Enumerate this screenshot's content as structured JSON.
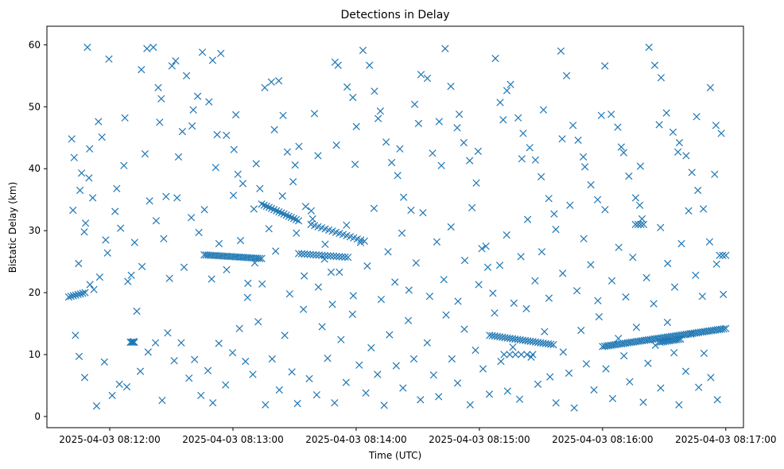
{
  "chart_data": {
    "type": "scatter",
    "title": "Detections in Delay",
    "xlabel": "Time (UTC)",
    "ylabel": "Bistatic Delay (km)",
    "marker": "x",
    "color": "#1f77b4",
    "xlim": [
      -10.6,
      328.6
    ],
    "ylim": [
      -1.8,
      63.0
    ],
    "x_units": "seconds after 2025-04-03 08:11:40",
    "x_ticks": [
      {
        "value": 20,
        "label": "2025-04-03 08:12:00"
      },
      {
        "value": 80,
        "label": "2025-04-03 08:13:00"
      },
      {
        "value": 140,
        "label": "2025-04-03 08:14:00"
      },
      {
        "value": 200,
        "label": "2025-04-03 08:15:00"
      },
      {
        "value": 260,
        "label": "2025-04-03 08:16:00"
      },
      {
        "value": 320,
        "label": "2025-04-03 08:17:00"
      }
    ],
    "y_ticks": [
      {
        "value": 0,
        "label": "0"
      },
      {
        "value": 10,
        "label": "10"
      },
      {
        "value": 20,
        "label": "20"
      },
      {
        "value": 30,
        "label": "30"
      },
      {
        "value": 40,
        "label": "40"
      },
      {
        "value": 50,
        "label": "50"
      },
      {
        "value": 60,
        "label": "60"
      }
    ],
    "tracks": [
      {
        "x_start": 0,
        "x_end": 8,
        "y_start": 19.3,
        "y_end": 20.0,
        "count": 8
      },
      {
        "x_start": 30,
        "x_end": 32,
        "y_start": 12.0,
        "y_end": 12.0,
        "count": 4
      },
      {
        "x_start": 66,
        "x_end": 94,
        "y_start": 26.1,
        "y_end": 25.5,
        "count": 30
      },
      {
        "x_start": 94,
        "x_end": 112,
        "y_start": 34.3,
        "y_end": 31.6,
        "count": 16
      },
      {
        "x_start": 118,
        "x_end": 144,
        "y_start": 31.0,
        "y_end": 28.3,
        "count": 16
      },
      {
        "x_start": 112,
        "x_end": 136,
        "y_start": 26.3,
        "y_end": 25.7,
        "count": 18
      },
      {
        "x_start": 205,
        "x_end": 236,
        "y_start": 13.1,
        "y_end": 11.6,
        "count": 26
      },
      {
        "x_start": 212,
        "x_end": 226,
        "y_start": 10.0,
        "y_end": 10.0,
        "count": 6
      },
      {
        "x_start": 260,
        "x_end": 320,
        "y_start": 11.3,
        "y_end": 14.2,
        "count": 60
      },
      {
        "x_start": 288,
        "x_end": 298,
        "y_start": 12.0,
        "y_end": 12.5,
        "count": 12
      },
      {
        "x_start": 276,
        "x_end": 280,
        "y_start": 31.0,
        "y_end": 31.0,
        "count": 4
      },
      {
        "x_start": 317,
        "x_end": 320,
        "y_start": 26.0,
        "y_end": 26.0,
        "count": 3
      }
    ],
    "points": [
      [
        1.5,
        44.8
      ],
      [
        4.8,
        24.7
      ],
      [
        6.3,
        39.3
      ],
      [
        7.6,
        29.8
      ],
      [
        9.1,
        59.6
      ],
      [
        10.2,
        43.2
      ],
      [
        12.3,
        20.5
      ],
      [
        14.5,
        47.6
      ],
      [
        18,
        28.5
      ],
      [
        19.6,
        57.7
      ],
      [
        23.4,
        36.8
      ],
      [
        26.9,
        40.5
      ],
      [
        30.5,
        22.8
      ],
      [
        33.2,
        17
      ],
      [
        35.4,
        56
      ],
      [
        38.1,
        59.4
      ],
      [
        41.2,
        59.6
      ],
      [
        43.6,
        53.1
      ],
      [
        45.1,
        51.3
      ],
      [
        47.4,
        35.5
      ],
      [
        50.3,
        56.6
      ],
      [
        52.1,
        57.4
      ],
      [
        55.4,
        46
      ],
      [
        57.4,
        55
      ],
      [
        60.1,
        46.9
      ],
      [
        62.8,
        51.7
      ],
      [
        65.1,
        58.8
      ],
      [
        68.3,
        50.8
      ],
      [
        70.1,
        57.5
      ],
      [
        72.3,
        45.5
      ],
      [
        74.1,
        58.6
      ],
      [
        76.8,
        45.4
      ],
      [
        80.5,
        43.1
      ],
      [
        82.4,
        39.1
      ],
      [
        84.8,
        37.6
      ],
      [
        87.3,
        21.5
      ],
      [
        90.2,
        33.5
      ],
      [
        93.1,
        36.8
      ],
      [
        95.5,
        53.1
      ],
      [
        98.7,
        54
      ],
      [
        102.3,
        54.2
      ],
      [
        104.4,
        48.6
      ],
      [
        106.5,
        42.7
      ],
      [
        109.3,
        37.9
      ],
      [
        112.1,
        43.6
      ],
      [
        115.4,
        33.9
      ],
      [
        118.8,
        31.9
      ],
      [
        121.4,
        42.1
      ],
      [
        124.6,
        25.4
      ],
      [
        127.8,
        23.3
      ],
      [
        129.7,
        57.2
      ],
      [
        131.2,
        56.7
      ],
      [
        135.6,
        53.2
      ],
      [
        138.4,
        51.5
      ],
      [
        140.1,
        46.8
      ],
      [
        143.3,
        59.1
      ],
      [
        146.5,
        56.7
      ],
      [
        148.9,
        52.5
      ],
      [
        151.8,
        49.3
      ],
      [
        154.6,
        44.3
      ],
      [
        157.3,
        41
      ],
      [
        160.2,
        38.9
      ],
      [
        163.1,
        35.4
      ],
      [
        166.7,
        33.3
      ],
      [
        168.5,
        50.4
      ],
      [
        171.6,
        55.2
      ],
      [
        174.7,
        54.6
      ],
      [
        177.2,
        42.5
      ],
      [
        180.4,
        47.6
      ],
      [
        183.3,
        59.4
      ],
      [
        186.1,
        53.3
      ],
      [
        189.2,
        46.6
      ],
      [
        192.4,
        44.2
      ],
      [
        195.3,
        41.3
      ],
      [
        198.5,
        37.7
      ],
      [
        201.2,
        27.1
      ],
      [
        204.1,
        24.1
      ],
      [
        207.8,
        57.8
      ],
      [
        210.1,
        50.7
      ],
      [
        213.4,
        52.6
      ],
      [
        215.2,
        53.6
      ],
      [
        218.9,
        48.2
      ],
      [
        221.3,
        45.7
      ],
      [
        224.5,
        43.4
      ],
      [
        227.3,
        41.4
      ],
      [
        230.1,
        38.7
      ],
      [
        233.8,
        35.2
      ],
      [
        236.4,
        32.7
      ],
      [
        239.7,
        59
      ],
      [
        242.5,
        55
      ],
      [
        245.6,
        47
      ],
      [
        248.1,
        44.6
      ],
      [
        251.4,
        40.3
      ],
      [
        254.3,
        37.4
      ],
      [
        257.6,
        35
      ],
      [
        261.1,
        56.6
      ],
      [
        264.2,
        48.8
      ],
      [
        267.4,
        46.7
      ],
      [
        270.3,
        42.6
      ],
      [
        272.8,
        38.8
      ],
      [
        276.1,
        35.3
      ],
      [
        279.2,
        31.9
      ],
      [
        282.6,
        59.6
      ],
      [
        285.4,
        56.7
      ],
      [
        288.5,
        54.7
      ],
      [
        291.1,
        49
      ],
      [
        294.3,
        45.9
      ],
      [
        297.4,
        44.2
      ],
      [
        300.7,
        42.1
      ],
      [
        303.5,
        39.4
      ],
      [
        306.4,
        36.5
      ],
      [
        309.1,
        33.5
      ],
      [
        312.5,
        53.1
      ],
      [
        315.2,
        47
      ],
      [
        317.8,
        45.7
      ],
      [
        3.3,
        13.1
      ],
      [
        5.1,
        9.7
      ],
      [
        7.8,
        6.3
      ],
      [
        10.4,
        21.3
      ],
      [
        13.6,
        1.7
      ],
      [
        17.4,
        8.8
      ],
      [
        21.2,
        3.4
      ],
      [
        24.7,
        5.2
      ],
      [
        28.3,
        4.8
      ],
      [
        31.6,
        12.1
      ],
      [
        34.9,
        7.3
      ],
      [
        38.7,
        10.4
      ],
      [
        42.3,
        11.9
      ],
      [
        45.5,
        2.6
      ],
      [
        48.2,
        13.5
      ],
      [
        51.4,
        9
      ],
      [
        54.8,
        11.9
      ],
      [
        58.6,
        6.2
      ],
      [
        61.3,
        9.2
      ],
      [
        64.4,
        3.4
      ],
      [
        67.8,
        7.4
      ],
      [
        70.2,
        2.2
      ],
      [
        73.1,
        11.8
      ],
      [
        76.4,
        5.1
      ],
      [
        79.8,
        10.3
      ],
      [
        83.2,
        14.2
      ],
      [
        86.1,
        8.9
      ],
      [
        89.7,
        6.8
      ],
      [
        92.3,
        15.3
      ],
      [
        95.8,
        1.9
      ],
      [
        99.1,
        9.3
      ],
      [
        102.6,
        4.3
      ],
      [
        105.2,
        13.1
      ],
      [
        108.7,
        7.2
      ],
      [
        111.4,
        2.1
      ],
      [
        114.3,
        17.3
      ],
      [
        117.2,
        6.1
      ],
      [
        120.8,
        3.5
      ],
      [
        123.4,
        14.5
      ],
      [
        126.1,
        9.4
      ],
      [
        129.5,
        2.2
      ],
      [
        132.6,
        12.4
      ],
      [
        135.1,
        5.5
      ],
      [
        138.2,
        16.5
      ],
      [
        141.5,
        8.3
      ],
      [
        144.7,
        3.8
      ],
      [
        147.3,
        11.1
      ],
      [
        150.4,
        6.8
      ],
      [
        153.6,
        1.8
      ],
      [
        156.2,
        13.2
      ],
      [
        159.5,
        8.2
      ],
      [
        162.8,
        4.6
      ],
      [
        165.4,
        15.5
      ],
      [
        168.1,
        9.3
      ],
      [
        171.3,
        2.7
      ],
      [
        174.6,
        11.9
      ],
      [
        177.7,
        6.7
      ],
      [
        180.2,
        3.2
      ],
      [
        183.8,
        16.4
      ],
      [
        186.6,
        9.3
      ],
      [
        189.4,
        5.4
      ],
      [
        192.7,
        14.1
      ],
      [
        195.5,
        1.9
      ],
      [
        198.1,
        10.7
      ],
      [
        201.8,
        7.7
      ],
      [
        204.9,
        3.6
      ],
      [
        207.4,
        16.7
      ],
      [
        210.5,
        8.9
      ],
      [
        213.7,
        4.1
      ],
      [
        216.3,
        11.2
      ],
      [
        219.6,
        2.8
      ],
      [
        222.9,
        17.4
      ],
      [
        225.2,
        9.6
      ],
      [
        228.5,
        5.2
      ],
      [
        231.7,
        13.7
      ],
      [
        234.4,
        6.4
      ],
      [
        237.3,
        2.2
      ],
      [
        240.8,
        10.4
      ],
      [
        243.6,
        7
      ],
      [
        246.2,
        1.4
      ],
      [
        249.5,
        13.9
      ],
      [
        252.1,
        8.5
      ],
      [
        255.8,
        4.3
      ],
      [
        258.3,
        16.1
      ],
      [
        261.6,
        7.7
      ],
      [
        264.9,
        2.9
      ],
      [
        267.7,
        12.6
      ],
      [
        270.4,
        9.8
      ],
      [
        273.2,
        5.6
      ],
      [
        276.5,
        14.4
      ],
      [
        279.8,
        2.3
      ],
      [
        282.1,
        8.6
      ],
      [
        285.7,
        11.5
      ],
      [
        288.3,
        4.6
      ],
      [
        291.6,
        15.2
      ],
      [
        294.8,
        10.3
      ],
      [
        297.2,
        1.9
      ],
      [
        300.5,
        7.3
      ],
      [
        303.1,
        13.3
      ],
      [
        306.8,
        4.7
      ],
      [
        309.4,
        10.2
      ],
      [
        312.7,
        6.3
      ],
      [
        315.9,
        2.7
      ],
      [
        2.1,
        33.3
      ],
      [
        5.5,
        36.5
      ],
      [
        8.2,
        31.2
      ],
      [
        11.7,
        35.3
      ],
      [
        15.1,
        22.5
      ],
      [
        18.9,
        26.4
      ],
      [
        22.6,
        33.1
      ],
      [
        25.3,
        30.4
      ],
      [
        28.8,
        21.8
      ],
      [
        32.1,
        28.1
      ],
      [
        35.7,
        24.2
      ],
      [
        39.4,
        34.8
      ],
      [
        42.6,
        31.6
      ],
      [
        46.3,
        28.7
      ],
      [
        49.1,
        22.3
      ],
      [
        52.8,
        35.3
      ],
      [
        56.2,
        24.1
      ],
      [
        59.7,
        32.1
      ],
      [
        63.4,
        29.7
      ],
      [
        66.1,
        33.4
      ],
      [
        69.6,
        22.2
      ],
      [
        73.2,
        27.9
      ],
      [
        76.9,
        23.7
      ],
      [
        80.2,
        35.7
      ],
      [
        83.7,
        28.4
      ],
      [
        87.1,
        19.2
      ],
      [
        90.6,
        24.8
      ],
      [
        94.2,
        21.4
      ],
      [
        97.5,
        30.3
      ],
      [
        100.8,
        26.7
      ],
      [
        104.1,
        35.6
      ],
      [
        107.6,
        19.8
      ],
      [
        110.9,
        29.6
      ],
      [
        114.7,
        22.7
      ],
      [
        118.1,
        33.2
      ],
      [
        121.6,
        20.9
      ],
      [
        124.9,
        27.8
      ],
      [
        128.4,
        18.1
      ],
      [
        131.8,
        23.3
      ],
      [
        135.3,
        30.9
      ],
      [
        138.6,
        19.5
      ],
      [
        142.1,
        28.1
      ],
      [
        145.4,
        24.3
      ],
      [
        148.7,
        33.6
      ],
      [
        152.2,
        18.9
      ],
      [
        155.5,
        26.6
      ],
      [
        158.9,
        21.7
      ],
      [
        162.3,
        29.6
      ],
      [
        165.7,
        20.4
      ],
      [
        169.2,
        24.8
      ],
      [
        172.5,
        32.9
      ],
      [
        175.8,
        19.4
      ],
      [
        179.3,
        28.2
      ],
      [
        182.7,
        22.1
      ],
      [
        186.2,
        30.6
      ],
      [
        189.6,
        18.6
      ],
      [
        192.9,
        25.2
      ],
      [
        196.4,
        33.7
      ],
      [
        199.7,
        21.3
      ],
      [
        203.2,
        27.5
      ],
      [
        206.6,
        19.9
      ],
      [
        209.9,
        24.4
      ],
      [
        213.3,
        29.3
      ],
      [
        216.8,
        18.3
      ],
      [
        220.2,
        25.8
      ],
      [
        223.5,
        31.8
      ],
      [
        227.1,
        21.9
      ],
      [
        230.4,
        26.6
      ],
      [
        233.9,
        19.1
      ],
      [
        237.2,
        30.2
      ],
      [
        240.6,
        23.1
      ],
      [
        244.1,
        34.1
      ],
      [
        247.5,
        20.3
      ],
      [
        250.8,
        28.7
      ],
      [
        254.2,
        24.5
      ],
      [
        257.7,
        18.7
      ],
      [
        261.2,
        33.4
      ],
      [
        264.5,
        21.9
      ],
      [
        267.9,
        27.3
      ],
      [
        271.3,
        19.3
      ],
      [
        274.7,
        25.7
      ],
      [
        278.1,
        34.1
      ],
      [
        281.4,
        22.4
      ],
      [
        284.9,
        18.2
      ],
      [
        288.2,
        30.5
      ],
      [
        291.7,
        24.7
      ],
      [
        295.1,
        20.9
      ],
      [
        298.4,
        27.9
      ],
      [
        301.9,
        33.2
      ],
      [
        305.3,
        22.8
      ],
      [
        308.6,
        19.4
      ],
      [
        312.1,
        28.2
      ],
      [
        315.5,
        24.6
      ],
      [
        318.8,
        19.7
      ],
      [
        2.7,
        41.8
      ],
      [
        9.9,
        38.5
      ],
      [
        16.2,
        45.1
      ],
      [
        27.4,
        48.2
      ],
      [
        37.2,
        42.4
      ],
      [
        44.3,
        47.5
      ],
      [
        53.5,
        41.9
      ],
      [
        60.7,
        49.5
      ],
      [
        71.6,
        40.2
      ],
      [
        81.4,
        48.7
      ],
      [
        91.3,
        40.8
      ],
      [
        100.2,
        46.3
      ],
      [
        110.3,
        40.6
      ],
      [
        119.7,
        48.9
      ],
      [
        130.4,
        43.8
      ],
      [
        139.5,
        40.7
      ],
      [
        150.7,
        48.1
      ],
      [
        161.3,
        43.2
      ],
      [
        170.4,
        47.3
      ],
      [
        181.5,
        40.5
      ],
      [
        190.2,
        48.8
      ],
      [
        199.4,
        42.8
      ],
      [
        211.6,
        47.9
      ],
      [
        220.7,
        41.6
      ],
      [
        231.2,
        49.5
      ],
      [
        240.3,
        44.8
      ],
      [
        250.6,
        41.9
      ],
      [
        259.4,
        48.6
      ],
      [
        269.1,
        43.5
      ],
      [
        278.4,
        40.4
      ],
      [
        287.6,
        47.1
      ],
      [
        296.7,
        42.7
      ],
      [
        305.8,
        48.4
      ],
      [
        314.6,
        39.1
      ]
    ]
  }
}
